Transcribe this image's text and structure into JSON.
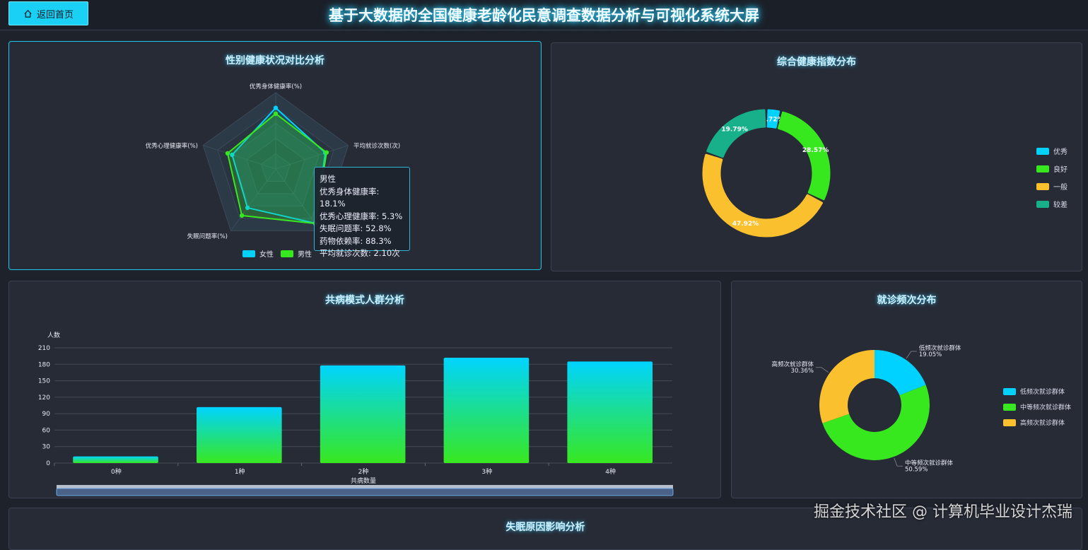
{
  "header": {
    "back_label": "返回首页",
    "back_icon": "home-icon",
    "title": "基于大数据的全国健康老龄化民意调查数据分析与可视化系统大屏"
  },
  "colors": {
    "cyan": "#00d2ff",
    "green": "#38e81f",
    "yellow": "#fbc02d",
    "teal": "#17b08a"
  },
  "radar": {
    "title": "性别健康状况对比分析",
    "indicators": [
      {
        "name": "优秀身体健康率(%)",
        "max": 25
      },
      {
        "name": "优秀心理健康率(%)",
        "max": 8
      },
      {
        "name": "失眠问题率(%)",
        "max": 70
      },
      {
        "name": "药物依赖率",
        "max": 100
      },
      {
        "name": "平均就诊次数(次)",
        "max": 3
      }
    ],
    "series": [
      {
        "name": "女性",
        "values": [
          20,
          4.8,
          44,
          88,
          2.05
        ],
        "color": "#00d2ff"
      },
      {
        "name": "男性",
        "values": [
          18.1,
          5.3,
          52.8,
          88.3,
          2.1
        ],
        "color": "#38e81f"
      }
    ],
    "tooltip": {
      "title": "男性",
      "lines": [
        "优秀身体健康率: 18.1%",
        "优秀心理健康率: 5.3%",
        "失眠问题率: 52.8%",
        "药物依赖率: 88.3%",
        "平均就诊次数: 2.10次"
      ]
    }
  },
  "health_index": {
    "title": "综合健康指数分布",
    "chart_data": {
      "type": "pie",
      "categories": [
        "优秀",
        "良好",
        "一般",
        "较差"
      ],
      "values": [
        3.72,
        28.57,
        47.92,
        19.79
      ],
      "labels": [
        "3.72%",
        "28.57%",
        "47.92%",
        "19.79%"
      ],
      "colors": [
        "#00d2ff",
        "#38e81f",
        "#fbc02d",
        "#17b08a"
      ],
      "legend": "right"
    }
  },
  "comorbidity": {
    "title": "共病模式人群分析",
    "chart_data": {
      "type": "bar",
      "categories": [
        "0种",
        "1种",
        "2种",
        "3种",
        "4种"
      ],
      "values": [
        12,
        102,
        178,
        192,
        185
      ],
      "xlabel": "共病数量",
      "ylabel": "人数",
      "ylim": [
        0,
        210
      ],
      "yticks": [
        "0",
        "30",
        "60",
        "90",
        "120",
        "150",
        "180",
        "210"
      ],
      "grid": true
    }
  },
  "visits": {
    "title": "就诊频次分布",
    "chart_data": {
      "type": "pie",
      "categories": [
        "低频次就诊群体",
        "中等频次就诊群体",
        "高频次就诊群体"
      ],
      "values": [
        19.05,
        50.59,
        30.36
      ],
      "labels": [
        "19.05%",
        "50.59%",
        "30.36%"
      ],
      "colors": [
        "#00d2ff",
        "#38e81f",
        "#fbc02d"
      ],
      "legend": "right"
    }
  },
  "insomnia": {
    "title": "失眠原因影响分析"
  },
  "watermark": "掘金技术社区 @ 计算机毕业设计杰瑞"
}
